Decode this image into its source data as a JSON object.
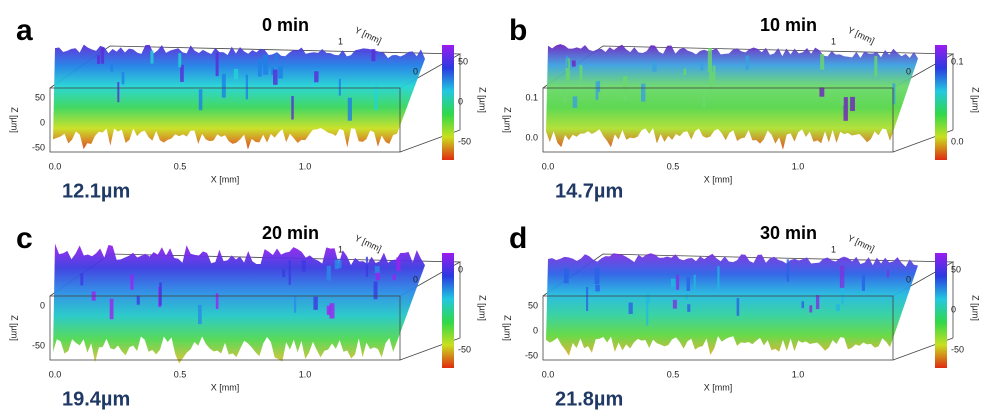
{
  "panels": [
    {
      "letter": "a",
      "time": "0 min",
      "roughness": "12.1µm",
      "x_axis_label": "X [mm]",
      "y_axis_label": "Y [mm]",
      "z_axis_label": "Z [µm]",
      "colorbar_label": "Z [µm]",
      "x_ticks": [
        "0.0",
        "0.5",
        "1.0"
      ],
      "y_ticks": [
        "1",
        "0"
      ],
      "z_ticks": [
        "50",
        "0",
        "-50"
      ],
      "colorbar_ticks": [
        "50",
        "0",
        "-50"
      ]
    },
    {
      "letter": "b",
      "time": "10 min",
      "roughness": "14.7µm",
      "x_axis_label": "X [mm]",
      "y_axis_label": "Y [mm]",
      "z_axis_label": "Z [µm]",
      "colorbar_label": "Z [µm]",
      "x_ticks": [
        "0.0",
        "0.5",
        "1.0"
      ],
      "y_ticks": [
        "1",
        "0"
      ],
      "z_ticks": [
        "0.1",
        "0.0"
      ],
      "colorbar_ticks": [
        "0.1",
        "0.0"
      ]
    },
    {
      "letter": "c",
      "time": "20 min",
      "roughness": "19.4µm",
      "x_axis_label": "X [mm]",
      "y_axis_label": "Y [mm]",
      "z_axis_label": "Z [µm]",
      "colorbar_label": "Z [µm]",
      "x_ticks": [
        "0.0",
        "0.5",
        "1.0"
      ],
      "y_ticks": [
        "1",
        "0"
      ],
      "z_ticks": [
        "0",
        "-50"
      ],
      "colorbar_ticks": [
        "0",
        "-50"
      ]
    },
    {
      "letter": "d",
      "time": "30 min",
      "roughness": "21.8µm",
      "x_axis_label": "X [mm]",
      "y_axis_label": "Y [mm]",
      "z_axis_label": "Z [µm]",
      "colorbar_label": "Z [µm]",
      "x_ticks": [
        "0.0",
        "0.5",
        "1.0"
      ],
      "y_ticks": [
        "1",
        "0"
      ],
      "z_ticks": [
        "50",
        "0",
        "-50"
      ],
      "colorbar_ticks": [
        "50",
        "0",
        "-50"
      ]
    }
  ]
}
